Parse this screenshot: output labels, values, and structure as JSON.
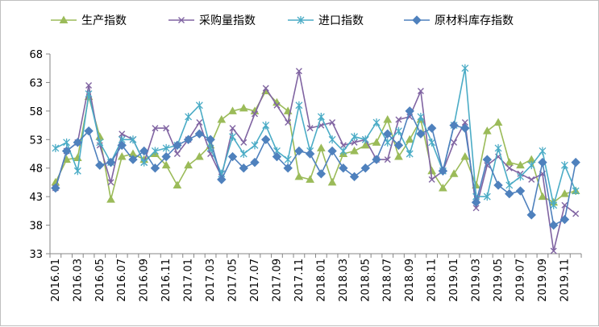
{
  "chart_data": {
    "type": "line",
    "title": "",
    "xlabel": "",
    "ylabel": "",
    "ylim": [
      33,
      68
    ],
    "y_ticks": [
      33,
      38,
      43,
      48,
      53,
      58,
      63,
      68
    ],
    "grid": "none",
    "legend_position": "top",
    "x": [
      "2016.01",
      "2016.02",
      "2016.03",
      "2016.04",
      "2016.05",
      "2016.06",
      "2016.07",
      "2016.08",
      "2016.09",
      "2016.10",
      "2016.11",
      "2016.12",
      "2017.01",
      "2017.02",
      "2017.03",
      "2017.04",
      "2017.05",
      "2017.06",
      "2017.07",
      "2017.08",
      "2017.09",
      "2017.10",
      "2017.11",
      "2017.12",
      "2018.01",
      "2018.02",
      "2018.03",
      "2018.04",
      "2018.05",
      "2018.06",
      "2018.07",
      "2018.08",
      "2018.09",
      "2018.10",
      "2018.11",
      "2018.12",
      "2019.01",
      "2019.02",
      "2019.03",
      "2019.04",
      "2019.05",
      "2019.06",
      "2019.07",
      "2019.08",
      "2019.09",
      "2019.10",
      "2019.11",
      "2019.12"
    ],
    "x_tick_labels": [
      "2016.01",
      "2016.03",
      "2016.05",
      "2016.07",
      "2016.09",
      "2016.11",
      "2017.01",
      "2017.03",
      "2017.05",
      "2017.07",
      "2017.09",
      "2017.11",
      "2018.01",
      "2018.03",
      "2018.05",
      "2018.07",
      "2018.09",
      "2018.11",
      "2019.01",
      "2019.03",
      "2019.05",
      "2019.07",
      "2019.09",
      "2019.11"
    ],
    "series": [
      {
        "name": "生产指数",
        "color": "#9bbb59",
        "marker": "triangle",
        "values": [
          45.5,
          49.5,
          49.8,
          60.5,
          53.5,
          42.5,
          50,
          50.5,
          49.5,
          50.5,
          48.5,
          45,
          48.5,
          50,
          52,
          56.5,
          58,
          58.5,
          58,
          61.5,
          59.5,
          58,
          46.5,
          46,
          51.5,
          45.5,
          50.5,
          51,
          52,
          52.5,
          56.5,
          50,
          53,
          56.5,
          47.5,
          44.5,
          47,
          50,
          45,
          54.5,
          56,
          49,
          48.5,
          49.5,
          43,
          42,
          43.5,
          44
        ]
      },
      {
        "name": "采购量指数",
        "color": "#8064a2",
        "marker": "x",
        "values": [
          44.5,
          51,
          52.5,
          62.5,
          52,
          45.5,
          54,
          53,
          49,
          55,
          55,
          50.5,
          53,
          56,
          50.5,
          46.5,
          55,
          52.5,
          57.5,
          62,
          59,
          56,
          65,
          55,
          55.5,
          56,
          52,
          52.5,
          53,
          49.5,
          49.5,
          56.5,
          57,
          61.5,
          46,
          47.5,
          52.5,
          56,
          41,
          48.5,
          50,
          48,
          47,
          46,
          47,
          33.5,
          41.5,
          40
        ]
      },
      {
        "name": "进口指数",
        "color": "#4bacc6",
        "marker": "asterisk",
        "values": [
          51.5,
          52.5,
          47.5,
          61,
          52.5,
          49,
          53,
          53,
          49,
          51,
          51.5,
          52,
          57,
          59,
          51.5,
          47,
          53.5,
          50.5,
          52,
          55.5,
          51,
          49.5,
          59,
          51,
          57,
          53,
          51,
          53.5,
          53,
          56,
          52.5,
          54.5,
          50.5,
          57,
          52.5,
          47.5,
          55.5,
          65.5,
          43,
          43,
          51.5,
          45,
          46.5,
          48.5,
          51,
          41.5,
          48.5,
          44
        ]
      },
      {
        "name": "原材料库存指数",
        "color": "#4f81bd",
        "marker": "diamond",
        "values": [
          44.5,
          51,
          52.5,
          54.5,
          48.5,
          49,
          52,
          49.5,
          51,
          48,
          50,
          52,
          53,
          54,
          53,
          46,
          50,
          48,
          49,
          53,
          50,
          48,
          51,
          50.5,
          47,
          51,
          48,
          46.5,
          48,
          49.5,
          54,
          52,
          58,
          54,
          55,
          47.5,
          55.5,
          55,
          42,
          49.5,
          45,
          43.5,
          44,
          39.8,
          49,
          38,
          39,
          49
        ]
      }
    ]
  }
}
